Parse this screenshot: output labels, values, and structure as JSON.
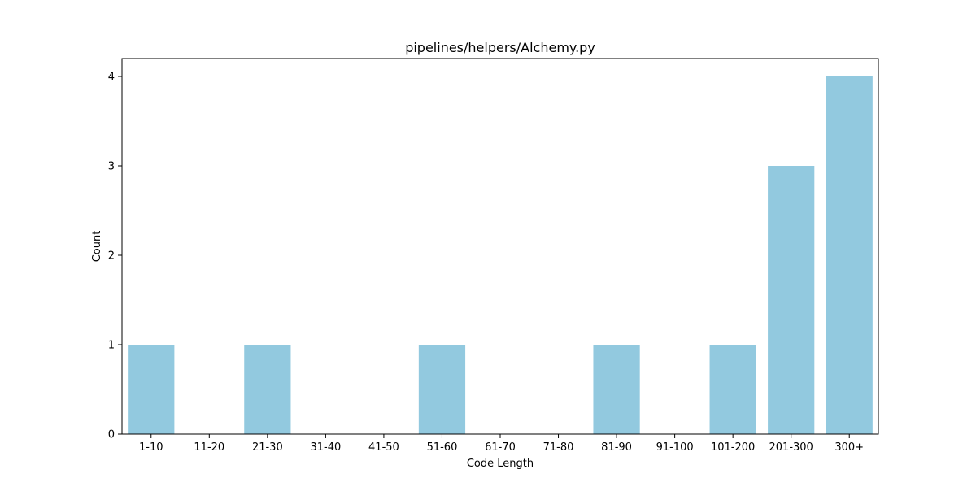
{
  "chart_data": {
    "type": "bar",
    "title": "pipelines/helpers/Alchemy.py",
    "xlabel": "Code Length",
    "ylabel": "Count",
    "categories": [
      "1-10",
      "11-20",
      "21-30",
      "31-40",
      "41-50",
      "51-60",
      "61-70",
      "71-80",
      "81-90",
      "91-100",
      "101-200",
      "201-300",
      "300+"
    ],
    "values": [
      1,
      0,
      1,
      0,
      0,
      1,
      0,
      0,
      1,
      0,
      1,
      3,
      4
    ],
    "ylim": [
      0,
      4.2
    ],
    "yticks": [
      0,
      1,
      2,
      3,
      4
    ],
    "bar_color": "#92C9DF",
    "grid": false,
    "legend": "none"
  }
}
